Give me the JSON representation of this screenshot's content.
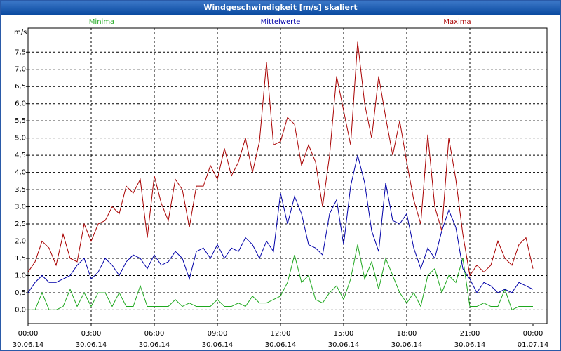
{
  "chart_data": {
    "type": "line",
    "title": "Windgeschwindigkeit [m/s] skaliert",
    "ylabel": "m/s",
    "x": [
      0,
      20,
      40,
      60,
      80,
      100,
      120,
      140,
      160,
      180,
      200,
      220,
      240,
      260,
      280,
      300,
      320,
      340,
      360,
      380,
      400,
      420,
      440,
      460,
      480,
      500,
      520,
      540,
      560,
      580,
      600,
      620,
      640,
      660,
      680,
      700,
      720,
      740,
      760,
      780,
      800,
      820,
      840,
      860,
      880,
      900,
      920,
      940,
      960,
      980,
      1000,
      1020,
      1040,
      1060,
      1080,
      1100,
      1120,
      1140,
      1160,
      1180,
      1200,
      1220,
      1240,
      1260,
      1280,
      1300,
      1320,
      1340,
      1360,
      1380,
      1400,
      1420,
      1440
    ],
    "series": [
      {
        "name": "Minima",
        "color": "#1fa81f",
        "values": [
          0,
          0,
          0.5,
          0,
          0,
          0.1,
          0.6,
          0.1,
          0.5,
          0.1,
          0.5,
          0.5,
          0.1,
          0.5,
          0.1,
          0.1,
          0.7,
          0.1,
          0.1,
          0.1,
          0.1,
          0.3,
          0.1,
          0.2,
          0.1,
          0.1,
          0.1,
          0.3,
          0.1,
          0.1,
          0.2,
          0.1,
          0.4,
          0.2,
          0.2,
          0.3,
          0.4,
          0.8,
          1.6,
          0.8,
          1.0,
          0.3,
          0.2,
          0.5,
          0.7,
          0.3,
          0.9,
          1.9,
          0.9,
          1.4,
          0.6,
          1.5,
          1.0,
          0.5,
          0.2,
          0.5,
          0.1,
          1.0,
          1.2,
          0.5,
          1.0,
          0.8,
          1.5,
          0.1,
          0.1,
          0.2,
          0.1,
          0.1,
          0.6,
          0,
          0.1,
          0.1,
          0.1
        ]
      },
      {
        "name": "Mittelwerte",
        "color": "#0000a8",
        "values": [
          0.5,
          0.8,
          1.0,
          0.8,
          0.8,
          0.9,
          1.0,
          1.3,
          1.5,
          0.9,
          1.1,
          1.5,
          1.3,
          1.0,
          1.4,
          1.6,
          1.5,
          1.2,
          1.6,
          1.3,
          1.4,
          1.7,
          1.5,
          0.9,
          1.7,
          1.8,
          1.5,
          1.9,
          1.5,
          1.8,
          1.7,
          2.1,
          1.9,
          1.5,
          2.0,
          1.7,
          3.4,
          2.5,
          3.3,
          2.8,
          1.9,
          1.8,
          1.6,
          2.8,
          3.2,
          1.9,
          3.6,
          4.5,
          3.7,
          2.3,
          1.7,
          3.7,
          2.6,
          2.5,
          2.8,
          1.8,
          1.2,
          1.8,
          1.5,
          2.3,
          2.9,
          2.4,
          1.2,
          0.9,
          0.5,
          0.8,
          0.7,
          0.5,
          0.6,
          0.5,
          0.8,
          0.7,
          0.6
        ]
      },
      {
        "name": "Maxima",
        "color": "#a80000",
        "values": [
          1.1,
          1.4,
          2.0,
          1.8,
          1.3,
          2.2,
          1.5,
          1.4,
          2.5,
          2.0,
          2.5,
          2.6,
          3.0,
          2.8,
          3.6,
          3.4,
          3.8,
          2.1,
          3.9,
          3.1,
          2.6,
          3.8,
          3.5,
          2.4,
          3.6,
          3.6,
          4.2,
          3.8,
          4.7,
          3.9,
          4.3,
          5.0,
          4.0,
          4.9,
          7.2,
          4.8,
          4.9,
          5.6,
          5.4,
          4.2,
          4.8,
          4.3,
          3.0,
          4.5,
          6.8,
          5.8,
          4.8,
          7.8,
          6.0,
          5.0,
          6.8,
          5.6,
          4.5,
          5.5,
          4.3,
          3.2,
          2.5,
          5.1,
          3.0,
          2.3,
          5.0,
          3.8,
          2.2,
          1.0,
          1.3,
          1.1,
          1.3,
          2.0,
          1.5,
          1.3,
          1.9,
          2.1,
          1.2
        ]
      }
    ],
    "xlim": [
      0,
      1440
    ],
    "xticks": [
      {
        "value": 0,
        "label": "00:00"
      },
      {
        "value": 180,
        "label": "03:00"
      },
      {
        "value": 360,
        "label": "06:00"
      },
      {
        "value": 540,
        "label": "09:00"
      },
      {
        "value": 720,
        "label": "12:00"
      },
      {
        "value": 900,
        "label": "15:00"
      },
      {
        "value": 1080,
        "label": "18:00"
      },
      {
        "value": 1260,
        "label": "21:00"
      },
      {
        "value": 1440,
        "label": "00:00"
      }
    ],
    "xtick_dates": [
      "30.06.14",
      "30.06.14",
      "30.06.14",
      "30.06.14",
      "30.06.14",
      "30.06.14",
      "30.06.14",
      "30.06.14",
      "01.07.14"
    ],
    "ylim": [
      -0.4,
      8.2
    ],
    "yticks": [
      {
        "value": 0,
        "label": "0,0"
      },
      {
        "value": 0.5,
        "label": "0,5"
      },
      {
        "value": 1,
        "label": "1,0"
      },
      {
        "value": 1.5,
        "label": "1,5"
      },
      {
        "value": 2,
        "label": "2,0"
      },
      {
        "value": 2.5,
        "label": "2,5"
      },
      {
        "value": 3,
        "label": "3,0"
      },
      {
        "value": 3.5,
        "label": "3,5"
      },
      {
        "value": 4,
        "label": "4,0"
      },
      {
        "value": 4.5,
        "label": "4,5"
      },
      {
        "value": 5,
        "label": "5,0"
      },
      {
        "value": 5.5,
        "label": "5,5"
      },
      {
        "value": 6,
        "label": "6,0"
      },
      {
        "value": 6.5,
        "label": "6,5"
      },
      {
        "value": 7,
        "label": "7,0"
      },
      {
        "value": 7.5,
        "label": "7,5"
      }
    ],
    "grid": true
  }
}
